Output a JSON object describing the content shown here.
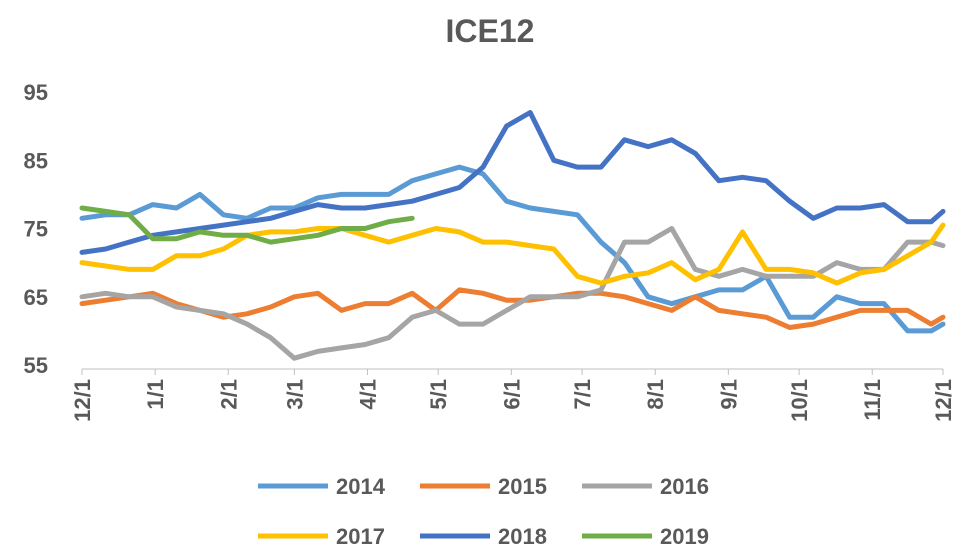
{
  "chart_data": {
    "type": "line",
    "title": "ICE12",
    "x": [
      0,
      10,
      20,
      30,
      40,
      50,
      60,
      70,
      80,
      90,
      100,
      110,
      120,
      130,
      140,
      150,
      160,
      170,
      180,
      190,
      200,
      210,
      220,
      230,
      240,
      250,
      260,
      270,
      280,
      290,
      300,
      310,
      320,
      330,
      340,
      350,
      360,
      365
    ],
    "xlim": [
      0,
      365
    ],
    "xticks": [
      {
        "value": 0,
        "label": "12/1"
      },
      {
        "value": 31,
        "label": "1/1"
      },
      {
        "value": 62,
        "label": "2/1"
      },
      {
        "value": 90,
        "label": "3/1"
      },
      {
        "value": 121,
        "label": "4/1"
      },
      {
        "value": 151,
        "label": "5/1"
      },
      {
        "value": 182,
        "label": "6/1"
      },
      {
        "value": 212,
        "label": "7/1"
      },
      {
        "value": 243,
        "label": "8/1"
      },
      {
        "value": 274,
        "label": "9/1"
      },
      {
        "value": 304,
        "label": "10/1"
      },
      {
        "value": 335,
        "label": "11/1"
      },
      {
        "value": 365,
        "label": "12/1"
      }
    ],
    "ylim": [
      55,
      95
    ],
    "yticks": [
      55,
      65,
      75,
      85,
      95
    ],
    "series": [
      {
        "name": "2014",
        "color": "#5b9bd5",
        "values": [
          76.5,
          77,
          77,
          78.5,
          78,
          80,
          77,
          76.5,
          78,
          78,
          79.5,
          80,
          80,
          80,
          82,
          83,
          84,
          83,
          79,
          78,
          77.5,
          77,
          73,
          70,
          65,
          64,
          65,
          66,
          66,
          68,
          62,
          62,
          65,
          64,
          64,
          60,
          60,
          61
        ]
      },
      {
        "name": "2015",
        "color": "#ed7d31",
        "values": [
          64,
          64.5,
          65,
          65.5,
          64,
          63,
          62,
          62.5,
          63.5,
          65,
          65.5,
          63,
          64,
          64,
          65.5,
          63,
          66,
          65.5,
          64.5,
          64.5,
          65,
          65.5,
          65.5,
          65,
          64,
          63,
          65,
          63,
          62.5,
          62,
          60.5,
          61,
          62,
          63,
          63,
          63,
          61,
          62
        ]
      },
      {
        "name": "2016",
        "color": "#a5a5a5",
        "values": [
          65,
          65.5,
          65,
          65,
          63.5,
          63,
          62.5,
          61,
          59,
          56,
          57,
          57.5,
          58,
          59,
          62,
          63,
          61,
          61,
          63,
          65,
          65,
          65,
          66,
          73,
          73,
          75,
          69,
          68,
          69,
          68,
          68,
          68,
          70,
          69,
          69,
          73,
          73,
          72.5
        ]
      },
      {
        "name": "2017",
        "color": "#ffc000",
        "values": [
          70,
          69.5,
          69,
          69,
          71,
          71,
          72,
          74,
          74.5,
          74.5,
          75,
          75,
          74,
          73,
          74,
          75,
          74.5,
          73,
          73,
          72.5,
          72,
          68,
          67,
          68,
          68.5,
          70,
          67.5,
          69,
          74.5,
          69,
          69,
          68.5,
          67,
          68.5,
          69,
          71,
          73,
          75.5
        ]
      },
      {
        "name": "2018",
        "color": "#4472c4",
        "values": [
          71.5,
          72,
          73,
          74,
          74.5,
          75,
          75.5,
          76,
          76.5,
          77.5,
          78.5,
          78,
          78,
          78.5,
          79,
          80,
          81,
          84,
          90,
          92,
          85,
          84,
          84,
          88,
          87,
          88,
          86,
          82,
          82.5,
          82,
          79,
          76.5,
          78,
          78,
          78.5,
          76,
          76,
          77.5
        ]
      },
      {
        "name": "2019",
        "color": "#70ad47",
        "values": [
          78,
          77.5,
          77,
          73.5,
          73.5,
          74.5,
          74,
          74,
          73,
          73.5,
          74,
          75,
          75,
          76,
          76.5,
          null,
          null,
          null,
          null,
          null,
          null,
          null,
          null,
          null,
          null,
          null,
          null,
          null,
          null,
          null,
          null,
          null,
          null,
          null,
          null,
          null,
          null,
          null
        ]
      }
    ]
  }
}
